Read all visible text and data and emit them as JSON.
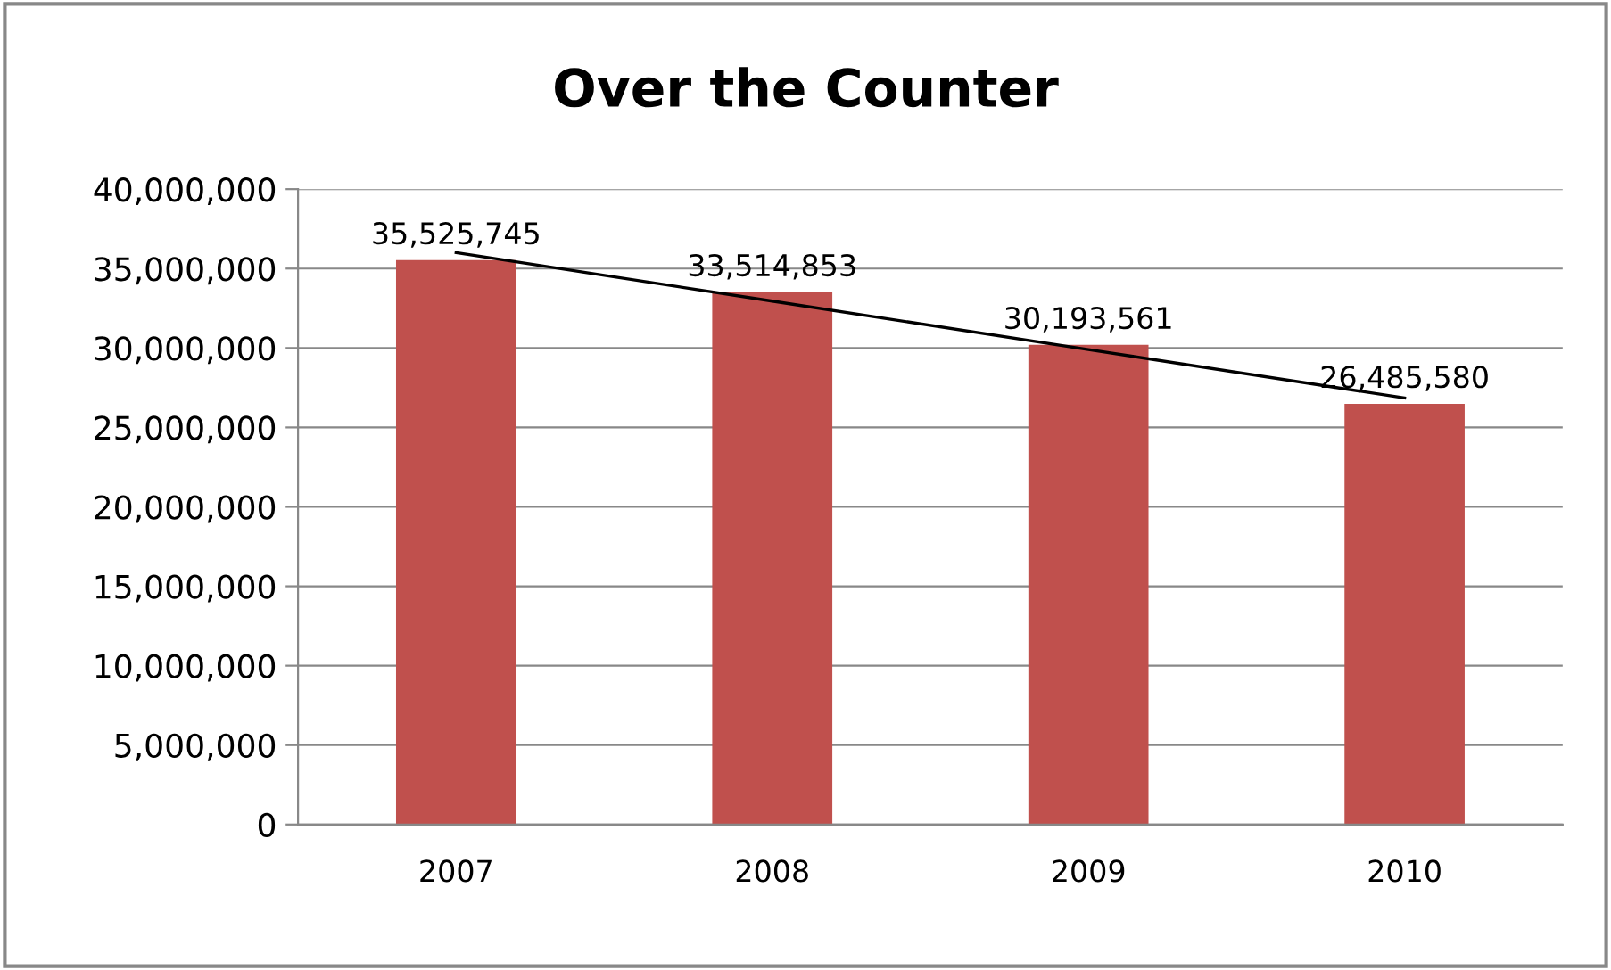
{
  "chart_data": {
    "type": "bar",
    "title": "Over the Counter",
    "categories": [
      "2007",
      "2008",
      "2009",
      "2010"
    ],
    "series": [
      {
        "color": "#c0504d",
        "values": [
          35525745,
          33514853,
          30193561,
          26485580
        ],
        "value_labels": [
          "35,525,745",
          "33,514,853",
          "30,193,561",
          "26,485,580"
        ]
      },
      {
        "type": "line",
        "color": "#000000",
        "values": [
          36000000,
          32950000,
          29900000,
          26850000
        ]
      }
    ],
    "ylim": [
      0,
      40000000
    ],
    "yticks": [
      {
        "value": 0,
        "label": "0"
      },
      {
        "value": 5000000,
        "label": "5,000,000"
      },
      {
        "value": 10000000,
        "label": "10,000,000"
      },
      {
        "value": 15000000,
        "label": "15,000,000"
      },
      {
        "value": 20000000,
        "label": "20,000,000"
      },
      {
        "value": 25000000,
        "label": "25,000,000"
      },
      {
        "value": 30000000,
        "label": "30,000,000"
      },
      {
        "value": 35000000,
        "label": "35,000,000"
      },
      {
        "value": 40000000,
        "label": "40,000,000"
      }
    ],
    "grid": "y",
    "legend": false
  }
}
